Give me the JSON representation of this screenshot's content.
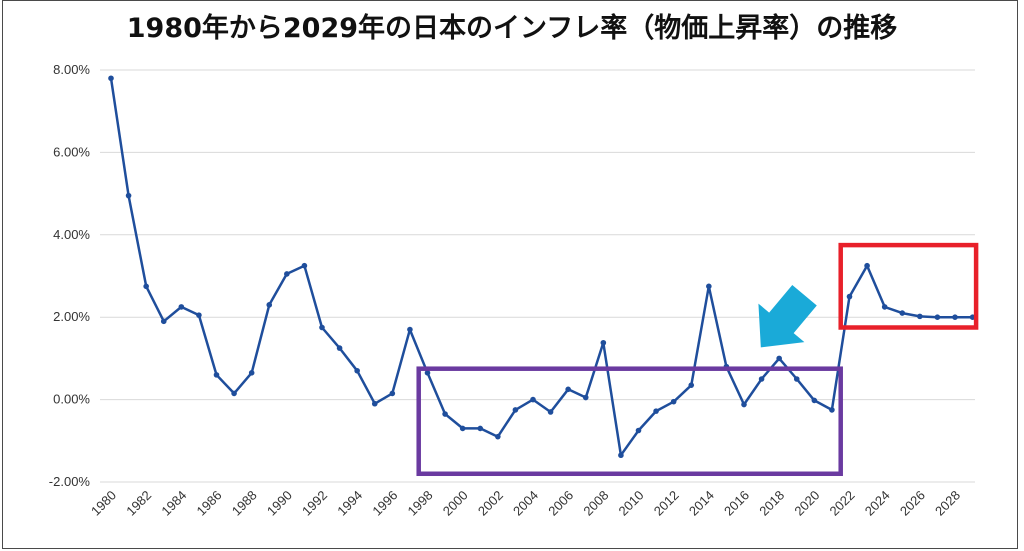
{
  "chart_data": {
    "type": "line",
    "title": "1980年から2029年の日本のインフレ率（物価上昇率）の推移",
    "xlabel": "",
    "ylabel": "",
    "ylim": [
      -2,
      8
    ],
    "y_ticks": [
      "8.00%",
      "6.00%",
      "4.00%",
      "2.00%",
      "0.00%",
      "-2.00%"
    ],
    "x_tick_labels": [
      "1980",
      "1982",
      "1984",
      "1986",
      "1988",
      "1990",
      "1992",
      "1994",
      "1996",
      "1998",
      "2000",
      "2002",
      "2004",
      "2006",
      "2008",
      "2010",
      "2012",
      "2014",
      "2016",
      "2018",
      "2020",
      "2022",
      "2024",
      "2026",
      "2028"
    ],
    "grid": true,
    "series": [
      {
        "color": "#1f4e9c",
        "x": [
          1980,
          1981,
          1982,
          1983,
          1984,
          1985,
          1986,
          1987,
          1988,
          1989,
          1990,
          1991,
          1992,
          1993,
          1994,
          1995,
          1996,
          1997,
          1998,
          1999,
          2000,
          2001,
          2002,
          2003,
          2004,
          2005,
          2006,
          2007,
          2008,
          2009,
          2010,
          2011,
          2012,
          2013,
          2014,
          2015,
          2016,
          2017,
          2018,
          2019,
          2020,
          2021,
          2022,
          2023,
          2024,
          2025,
          2026,
          2027,
          2028,
          2029
        ],
        "values": [
          7.8,
          4.95,
          2.75,
          1.9,
          2.25,
          2.05,
          0.6,
          0.15,
          0.65,
          2.3,
          3.05,
          3.25,
          1.75,
          1.25,
          0.7,
          -0.1,
          0.15,
          1.7,
          0.65,
          -0.35,
          -0.7,
          -0.7,
          -0.9,
          -0.25,
          0.0,
          -0.3,
          0.25,
          0.05,
          1.38,
          -1.35,
          -0.75,
          -0.28,
          -0.05,
          0.35,
          2.75,
          0.8,
          -0.12,
          0.5,
          1.0,
          0.5,
          -0.02,
          -0.25,
          2.5,
          3.25,
          2.25,
          2.1,
          2.02,
          2.0,
          2.0,
          2.0
        ]
      }
    ],
    "annotations": [
      {
        "type": "rectangle",
        "color": "#6a3aa0",
        "x_range": [
          1997.5,
          2021.5
        ],
        "y_range": [
          -1.8,
          0.75
        ]
      },
      {
        "type": "rectangle",
        "color": "#e8202a",
        "x_range": [
          2021.5,
          2029.2
        ],
        "y_range": [
          1.75,
          3.75
        ]
      },
      {
        "type": "arrow",
        "color": "#1aaad8",
        "direction": "down-right"
      }
    ]
  }
}
